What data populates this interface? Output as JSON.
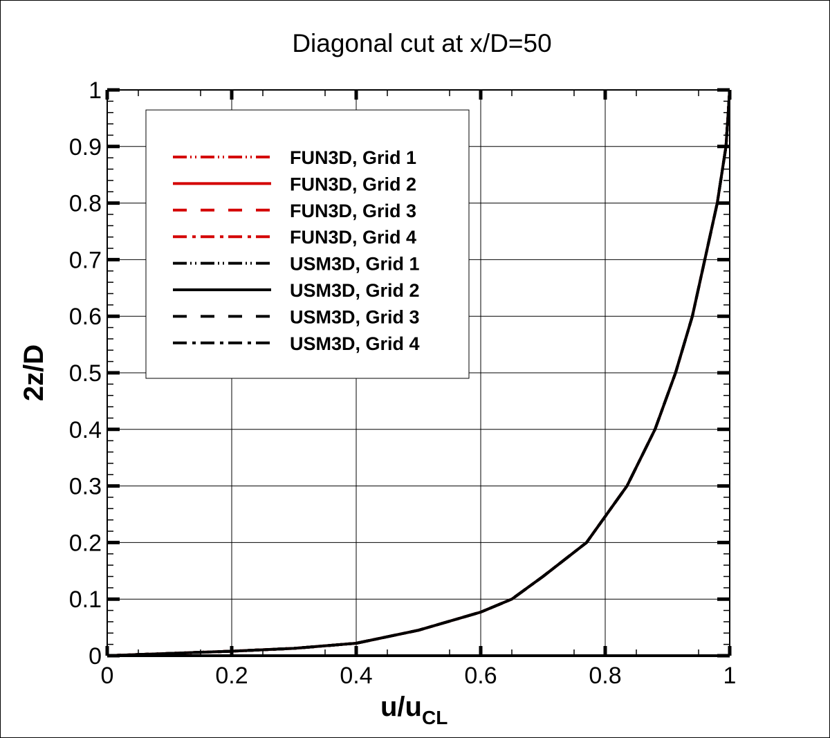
{
  "chart_data": {
    "type": "line",
    "title": "Diagonal cut at x/D=50",
    "xlabel": "u/u",
    "xlabel_subscript": "CL",
    "ylabel": "2z/D",
    "xlim": [
      0,
      1
    ],
    "ylim": [
      0,
      1
    ],
    "xticks": [
      "0",
      "0.2",
      "0.4",
      "0.6",
      "0.8",
      "1"
    ],
    "yticks": [
      "0",
      "0.1",
      "0.2",
      "0.3",
      "0.4",
      "0.5",
      "0.6",
      "0.7",
      "0.8",
      "0.9",
      "1"
    ],
    "grid": true,
    "legend_position": "top-left",
    "x": [
      0,
      0.1,
      0.2,
      0.3,
      0.4,
      0.5,
      0.6,
      0.65,
      0.7,
      0.77,
      0.835,
      0.88,
      0.913,
      0.94,
      0.96,
      0.98,
      0.994,
      1
    ],
    "series": [
      {
        "name": "FUN3D, Grid 1",
        "color": "#d40000",
        "style": "dash-dot-dot",
        "values": [
          0,
          0.004,
          0.008,
          0.013,
          0.022,
          0.045,
          0.077,
          0.1,
          0.14,
          0.2,
          0.3,
          0.4,
          0.5,
          0.6,
          0.7,
          0.8,
          0.9,
          1
        ]
      },
      {
        "name": "FUN3D, Grid 2",
        "color": "#d40000",
        "style": "solid",
        "values": [
          0,
          0.004,
          0.008,
          0.013,
          0.022,
          0.045,
          0.077,
          0.1,
          0.14,
          0.2,
          0.3,
          0.4,
          0.5,
          0.6,
          0.7,
          0.8,
          0.9,
          1
        ]
      },
      {
        "name": "FUN3D, Grid 3",
        "color": "#d40000",
        "style": "dashed",
        "values": [
          0,
          0.004,
          0.008,
          0.013,
          0.022,
          0.045,
          0.077,
          0.1,
          0.14,
          0.2,
          0.3,
          0.4,
          0.5,
          0.6,
          0.7,
          0.8,
          0.9,
          1
        ]
      },
      {
        "name": "FUN3D, Grid 4",
        "color": "#d40000",
        "style": "dash-dot",
        "values": [
          0,
          0.004,
          0.008,
          0.013,
          0.022,
          0.045,
          0.077,
          0.1,
          0.14,
          0.2,
          0.3,
          0.4,
          0.5,
          0.6,
          0.7,
          0.8,
          0.9,
          1
        ]
      },
      {
        "name": "USM3D, Grid 1",
        "color": "#000000",
        "style": "dash-dot-dot",
        "values": [
          0,
          0.004,
          0.008,
          0.013,
          0.022,
          0.045,
          0.077,
          0.1,
          0.14,
          0.2,
          0.3,
          0.4,
          0.5,
          0.6,
          0.7,
          0.8,
          0.9,
          1
        ]
      },
      {
        "name": "USM3D, Grid 2",
        "color": "#000000",
        "style": "solid",
        "values": [
          0,
          0.004,
          0.008,
          0.013,
          0.022,
          0.045,
          0.077,
          0.1,
          0.14,
          0.2,
          0.3,
          0.4,
          0.5,
          0.6,
          0.7,
          0.8,
          0.9,
          1
        ]
      },
      {
        "name": "USM3D, Grid 3",
        "color": "#000000",
        "style": "dashed",
        "values": [
          0,
          0.004,
          0.008,
          0.013,
          0.022,
          0.045,
          0.077,
          0.1,
          0.14,
          0.2,
          0.3,
          0.4,
          0.5,
          0.6,
          0.7,
          0.8,
          0.9,
          1
        ]
      },
      {
        "name": "USM3D, Grid 4",
        "color": "#000000",
        "style": "dash-dot",
        "values": [
          0,
          0.004,
          0.008,
          0.013,
          0.022,
          0.045,
          0.077,
          0.1,
          0.14,
          0.2,
          0.3,
          0.4,
          0.5,
          0.6,
          0.7,
          0.8,
          0.9,
          1
        ]
      }
    ]
  }
}
